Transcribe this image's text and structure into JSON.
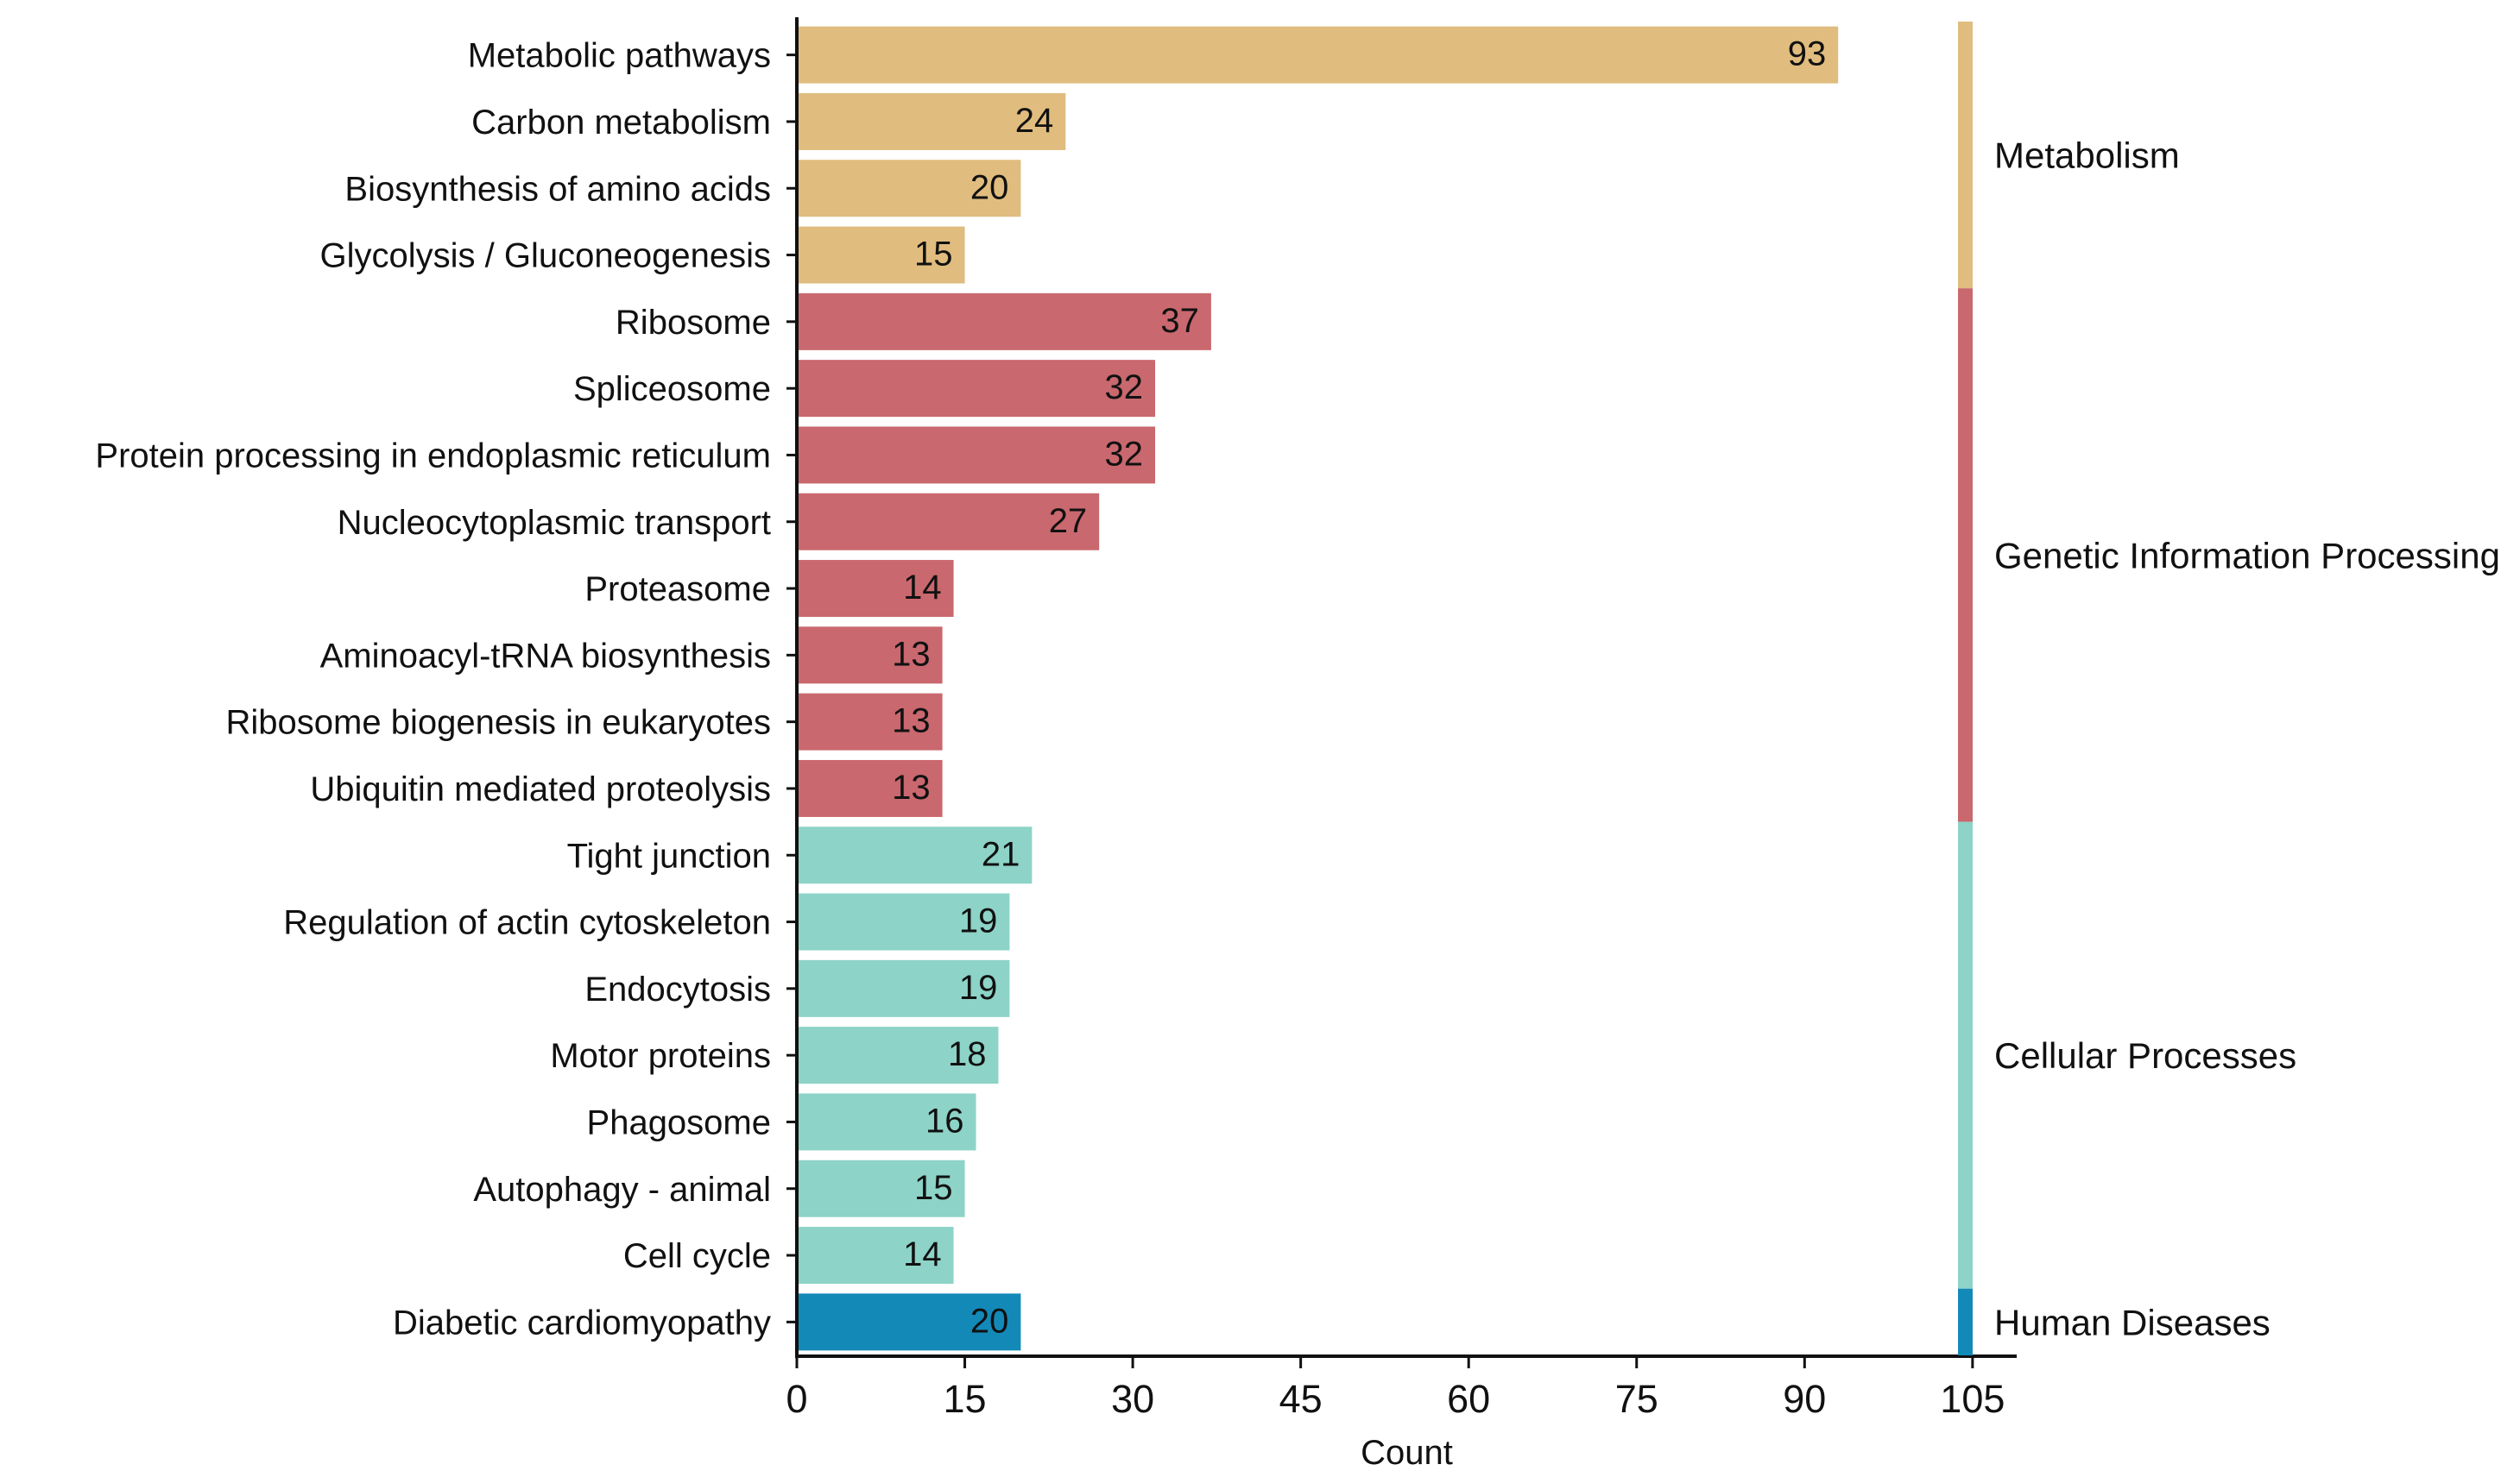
{
  "chart_data": {
    "type": "bar",
    "orientation": "horizontal",
    "title": "",
    "xlabel": "Count",
    "ylabel": "",
    "xlim": [
      0,
      109
    ],
    "xticks": [
      0,
      15,
      30,
      45,
      60,
      75,
      90,
      105
    ],
    "xtick_labels": [
      "0",
      "15",
      "30",
      "45",
      "60",
      "75",
      "90",
      "105"
    ],
    "categories": [
      "Metabolic pathways",
      "Carbon metabolism",
      "Biosynthesis of amino acids",
      "Glycolysis / Gluconeogenesis",
      "Ribosome",
      "Spliceosome",
      "Protein processing in endoplasmic reticulum",
      "Nucleocytoplasmic transport",
      "Proteasome",
      "Aminoacyl-tRNA biosynthesis",
      "Ribosome biogenesis in eukaryotes",
      "Ubiquitin mediated proteolysis",
      "Tight junction",
      "Regulation of actin cytoskeleton",
      "Endocytosis",
      "Motor proteins",
      "Phagosome",
      "Autophagy - animal",
      "Cell cycle",
      "Diabetic cardiomyopathy"
    ],
    "values": [
      93,
      24,
      20,
      15,
      37,
      32,
      32,
      27,
      14,
      13,
      13,
      13,
      21,
      19,
      19,
      18,
      16,
      15,
      14,
      20
    ],
    "value_labels": [
      "93",
      "24",
      "20",
      "15",
      "37",
      "32",
      "32",
      "27",
      "14",
      "13",
      "13",
      "13",
      "21",
      "19",
      "19",
      "18",
      "16",
      "15",
      "14",
      "20"
    ],
    "groups": [
      {
        "name": "Metabolism",
        "start": 0,
        "count": 4,
        "color": "#E0BC7E"
      },
      {
        "name": "Genetic Information Processing",
        "start": 4,
        "count": 8,
        "color": "#C9686E"
      },
      {
        "name": "Cellular Processes",
        "start": 12,
        "count": 7,
        "color": "#8DD3C7"
      },
      {
        "name": "Human Diseases",
        "start": 19,
        "count": 1,
        "color": "#1389B8"
      }
    ]
  }
}
